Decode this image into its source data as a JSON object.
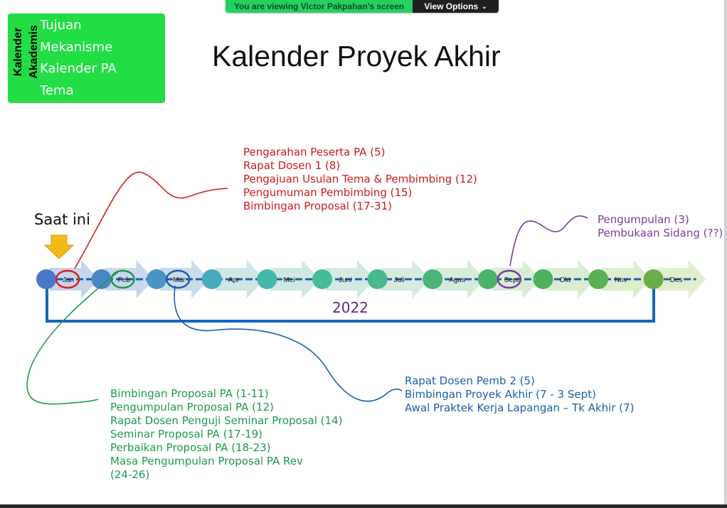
{
  "zoom_banner": {
    "viewing_text": "You are viewing Victor Pakpahan's screen",
    "view_options": "View Options"
  },
  "nav": {
    "vertical_label_line1": "Kalender",
    "vertical_label_line2": "Akademis",
    "items": [
      "Tujuan",
      "Mekanisme",
      "Kalender PA",
      "Tema"
    ]
  },
  "title": "Kalender Proyek Akhir",
  "current_marker_label": "Saat ini",
  "year": "2022",
  "months": [
    "Jan",
    "Feb",
    "Mar",
    "Apr",
    "Mei",
    "Juni",
    "Juli",
    "Agus",
    "Sept",
    "Okt",
    "Nov",
    "Des"
  ],
  "notes": {
    "jan": [
      "Pengarahan Peserta PA (5)",
      "Rapat Dosen 1 (8)",
      "Pengajuan Usulan Tema & Pembimbing (12)",
      "Pengumuman Pembimbing (15)",
      "Bimbingan Proposal (17-31)"
    ],
    "sept": [
      "Pengumpulan (3)",
      "Pembukaan Sidang (??)"
    ],
    "mar": [
      "Rapat Dosen Pemb 2 (5)",
      "Bimbingan Proyek Akhir (7 - 3 Sept)",
      "Awal Praktek Kerja Lapangan – Tk Akhir (7)"
    ],
    "feb": [
      "Bimbingan Proposal PA (1-11)",
      "Pengumpulan Proposal PA (12)",
      "Rapat Dosen Penguji Seminar Proposal (14)",
      "Seminar Proposal PA (17-19)",
      "Perbaikan Proposal PA (18-23)",
      "Masa Pengumpulan Proposal PA Rev",
      "(24-26)"
    ]
  },
  "colors": {
    "nav_bg": "#22dd44",
    "annotation_red": "#cc1b1b",
    "annotation_purple": "#7a3c9e",
    "annotation_blue": "#1c5ea8",
    "annotation_green": "#1f9a4c",
    "bracket_blue": "#1565c0"
  }
}
